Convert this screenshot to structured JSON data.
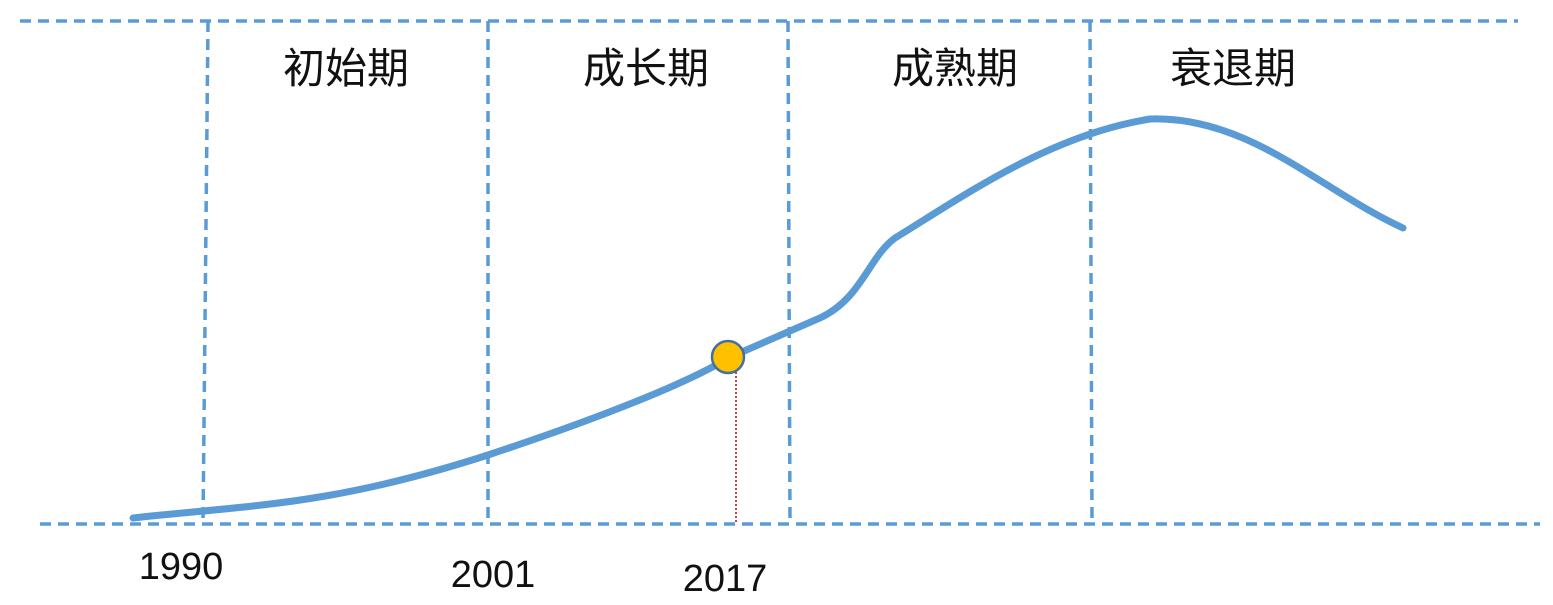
{
  "phases": [
    "初始期",
    "成长期",
    "成熟期",
    "衰退期"
  ],
  "years": [
    "1990",
    "2001",
    "2017"
  ]
}
